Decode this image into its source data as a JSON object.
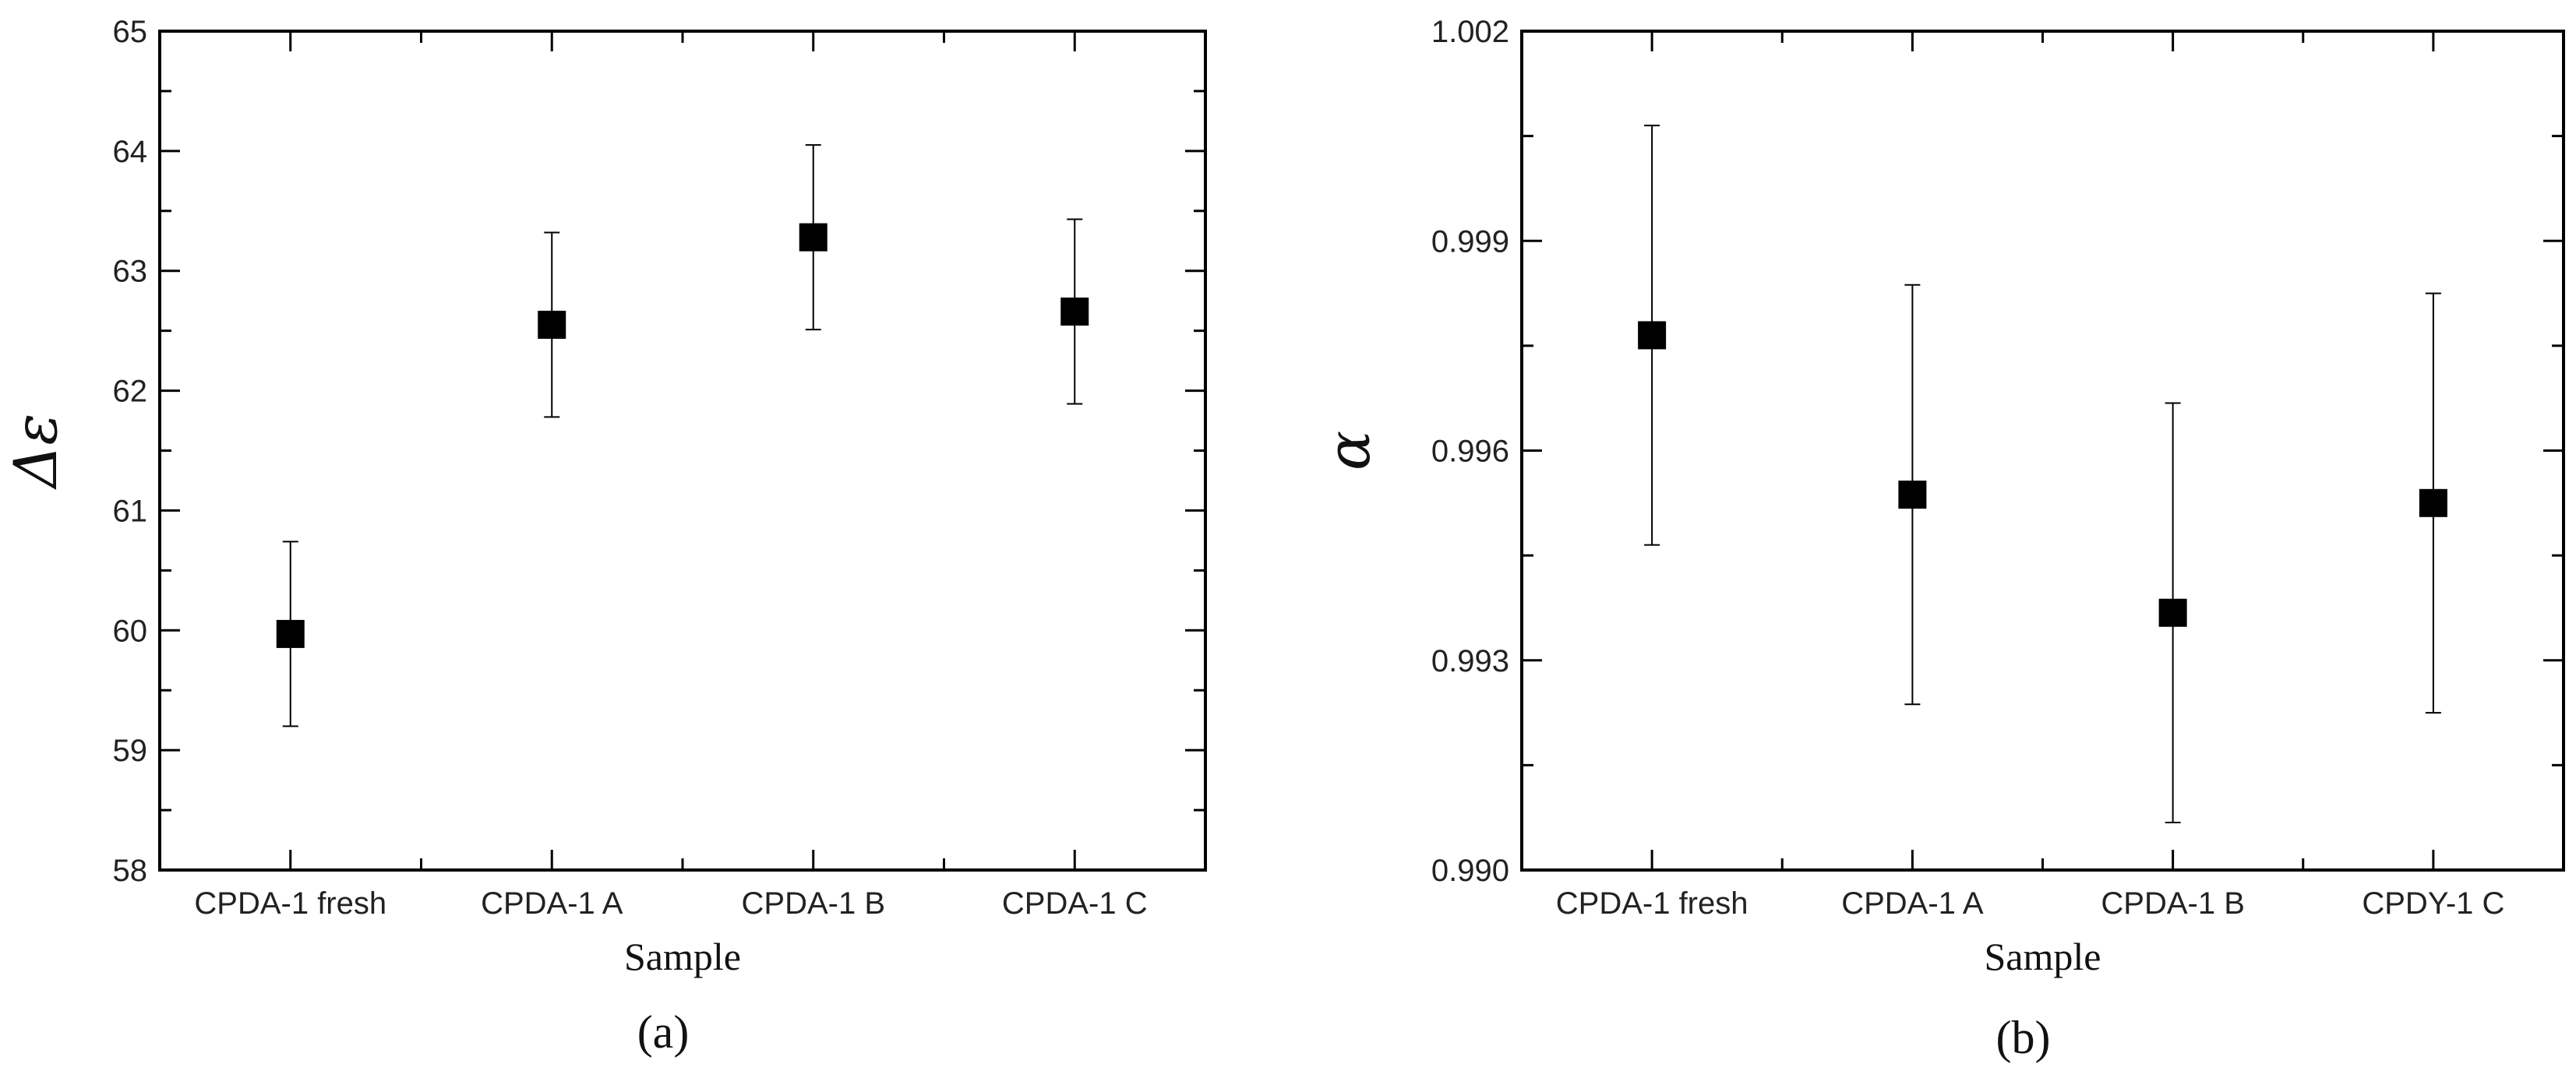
{
  "chart_data": [
    {
      "type": "scatter",
      "panel_label": "(a)",
      "categories": [
        "CPDA-1 fresh",
        "CPDA-1 A",
        "CPDA-1 B",
        "CPDA-1 C"
      ],
      "values": [
        59.97,
        62.55,
        63.28,
        62.66
      ],
      "error": [
        0.77,
        0.77,
        0.77,
        0.77
      ],
      "xlabel": "Sample",
      "ylabel": "Δε",
      "ylim": [
        58,
        65
      ],
      "yticks": [
        "58",
        "59",
        "60",
        "61",
        "62",
        "63",
        "64",
        "65"
      ],
      "ytick_values": [
        58,
        59,
        60,
        61,
        62,
        63,
        64,
        65
      ],
      "marker": "filled-square",
      "marker_color": "#000000",
      "grid": false,
      "legend": "none"
    },
    {
      "type": "scatter",
      "panel_label": "(b)",
      "categories": [
        "CPDA-1 fresh",
        "CPDA-1 A",
        "CPDA-1 B",
        "CPDY-1 C"
      ],
      "values": [
        0.99765,
        0.99537,
        0.99368,
        0.99525
      ],
      "error": [
        0.003,
        0.003,
        0.003,
        0.003
      ],
      "xlabel": "Sample",
      "ylabel": "α",
      "ylim": [
        0.99,
        1.002
      ],
      "yticks": [
        "0.990",
        "0.993",
        "0.996",
        "0.999",
        "1.002"
      ],
      "ytick_values": [
        0.99,
        0.993,
        0.996,
        0.999,
        1.002
      ],
      "marker": "filled-square",
      "marker_color": "#000000",
      "grid": false,
      "legend": "none"
    }
  ]
}
